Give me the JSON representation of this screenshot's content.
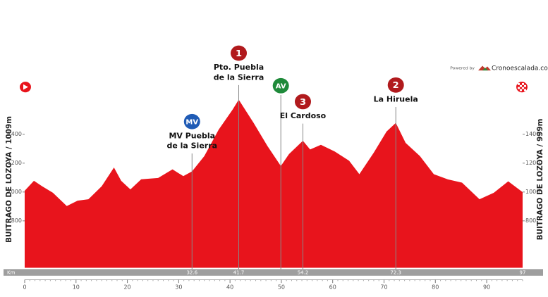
{
  "chart_data": {
    "type": "area",
    "x": [
      0,
      1.8,
      3.4,
      5.5,
      8.2,
      10.3,
      12.4,
      15,
      17.4,
      18.8,
      20.6,
      22.7,
      26,
      28.8,
      30.9,
      32.6,
      35,
      37.8,
      40.5,
      41.7,
      44.6,
      47.3,
      49.9,
      51.5,
      54.2,
      55.6,
      57.7,
      60.4,
      63.2,
      65.2,
      68,
      70.5,
      72.3,
      74.2,
      77,
      79.7,
      82.4,
      85.2,
      88.6,
      91.4,
      94.2,
      97
    ],
    "values": [
      1009,
      1078,
      1040,
      995,
      903,
      940,
      950,
      1040,
      1170,
      1078,
      1018,
      1088,
      1097,
      1157,
      1110,
      1143,
      1249,
      1433,
      1571,
      1640,
      1479,
      1318,
      1180,
      1263,
      1355,
      1295,
      1327,
      1281,
      1217,
      1124,
      1272,
      1419,
      1479,
      1341,
      1249,
      1124,
      1088,
      1065,
      950,
      995,
      1074,
      999
    ],
    "color": "#e8141c",
    "xlim": [
      0,
      97
    ],
    "xticks": [
      0,
      10,
      20,
      30,
      40,
      50,
      60,
      70,
      80,
      90
    ],
    "ylim": [
      475,
      1700
    ],
    "yticks": [
      800,
      1000,
      1200,
      1400
    ],
    "y_label_left": "BUITRAGO DE LOZOYA / 1009m",
    "y_label_right": "BUITRAGO DE LOZOYA / 999m",
    "km_label": "Km",
    "km_marks": [
      32.6,
      41.7,
      54.2,
      72.3,
      97
    ],
    "markers": [
      {
        "x": 32.6,
        "badge": "MV",
        "badge_color": "#1f5bb5",
        "label": [
          "MV Puebla",
          "de la Sierra"
        ]
      },
      {
        "x": 41.7,
        "badge": "1",
        "badge_color": "#b11a1d",
        "label": [
          "Pto. Puebla",
          "de la Sierra"
        ]
      },
      {
        "x": 49.9,
        "badge": "AV",
        "badge_color": "#1f8a3a",
        "label": []
      },
      {
        "x": 54.2,
        "badge": "3",
        "badge_color": "#b11a1d",
        "label": [
          "El Cardoso"
        ]
      },
      {
        "x": 72.3,
        "badge": "2",
        "badge_color": "#b11a1d",
        "label": [
          "La Hiruela"
        ]
      }
    ],
    "powered_by": "Powered by",
    "brand": "Cronoescalada.com"
  }
}
